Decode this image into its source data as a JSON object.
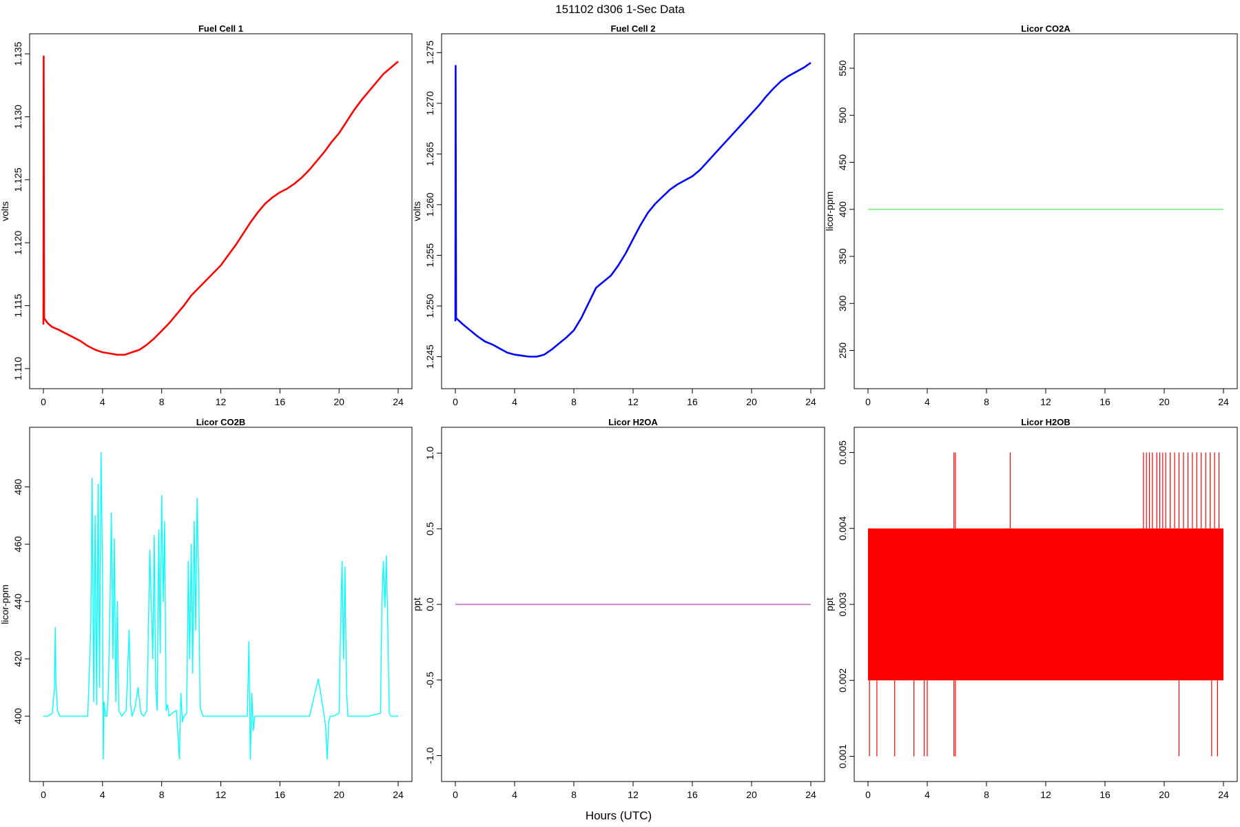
{
  "page": {
    "title": "151102   d306   1-Sec Data",
    "shared_xlabel": "Hours (UTC)"
  },
  "chart_data": [
    {
      "id": "fc1",
      "type": "line",
      "title": "Fuel Cell 1",
      "ylabel": "volts",
      "xlabel": "",
      "xlim": [
        0,
        24
      ],
      "ylim": [
        1.1095,
        1.1355
      ],
      "xticks": [
        0,
        4,
        8,
        12,
        16,
        20,
        24
      ],
      "yticks": [
        1.11,
        1.115,
        1.12,
        1.125,
        1.13,
        1.135
      ],
      "ytick_labels": [
        "1.110",
        "1.115",
        "1.120",
        "1.125",
        "1.130",
        "1.135"
      ],
      "color": "#ff0000",
      "grid": false,
      "series": [
        {
          "x": [
            0,
            0.02,
            0.05,
            0.3,
            0.6,
            1,
            1.5,
            2,
            2.5,
            3,
            3.5,
            4,
            4.5,
            5,
            5.5,
            6,
            6.5,
            7,
            7.5,
            8,
            8.5,
            9,
            9.5,
            10,
            10.5,
            11,
            11.5,
            12,
            12.5,
            13,
            13.5,
            14,
            14.5,
            15,
            15.5,
            16,
            16.5,
            17,
            17.5,
            18,
            18.5,
            19,
            19.5,
            20,
            20.5,
            21,
            21.5,
            22,
            22.5,
            23,
            23.5,
            24
          ],
          "values": [
            1.1135,
            1.1348,
            1.114,
            1.1136,
            1.1133,
            1.1131,
            1.1128,
            1.1125,
            1.1122,
            1.1118,
            1.1115,
            1.1113,
            1.1112,
            1.1111,
            1.1111,
            1.1113,
            1.1115,
            1.1119,
            1.1124,
            1.113,
            1.1136,
            1.1143,
            1.115,
            1.1158,
            1.1164,
            1.117,
            1.1176,
            1.1182,
            1.119,
            1.1198,
            1.1207,
            1.1216,
            1.1224,
            1.1231,
            1.1236,
            1.124,
            1.1243,
            1.1247,
            1.1252,
            1.1258,
            1.1265,
            1.1272,
            1.128,
            1.1287,
            1.1296,
            1.1305,
            1.1313,
            1.132,
            1.1327,
            1.1334,
            1.1339,
            1.1344
          ]
        }
      ]
    },
    {
      "id": "fc2",
      "type": "line",
      "title": "Fuel Cell 2",
      "ylabel": "volts",
      "xlabel": "",
      "xlim": [
        0,
        24
      ],
      "ylim": [
        1.2432,
        1.2755
      ],
      "xticks": [
        0,
        4,
        8,
        12,
        16,
        20,
        24
      ],
      "yticks": [
        1.245,
        1.25,
        1.255,
        1.26,
        1.265,
        1.27,
        1.275
      ],
      "ytick_labels": [
        "1.245",
        "1.250",
        "1.255",
        "1.260",
        "1.265",
        "1.270",
        "1.275"
      ],
      "color": "#0000ff",
      "grid": false,
      "series": [
        {
          "x": [
            0,
            0.02,
            0.05,
            0.5,
            1,
            1.5,
            2,
            2.5,
            3,
            3.5,
            4,
            4.5,
            5,
            5.5,
            6,
            6.5,
            7,
            7.5,
            8,
            8.5,
            9,
            9.5,
            10,
            10.5,
            11,
            11.5,
            12,
            12.5,
            13,
            13.5,
            14,
            14.5,
            15,
            15.5,
            16,
            16.5,
            17,
            17.5,
            18,
            18.5,
            19,
            19.5,
            20,
            20.5,
            21,
            21.5,
            22,
            22.5,
            23,
            23.5,
            24
          ],
          "values": [
            1.2485,
            1.2737,
            1.2488,
            1.2482,
            1.2476,
            1.247,
            1.2465,
            1.2462,
            1.2458,
            1.2454,
            1.2452,
            1.2451,
            1.245,
            1.245,
            1.2452,
            1.2457,
            1.2463,
            1.2469,
            1.2476,
            1.2488,
            1.2503,
            1.2518,
            1.2524,
            1.253,
            1.254,
            1.2552,
            1.2566,
            1.258,
            1.2592,
            1.2601,
            1.2608,
            1.2615,
            1.262,
            1.2624,
            1.2628,
            1.2634,
            1.2642,
            1.265,
            1.2658,
            1.2666,
            1.2674,
            1.2682,
            1.269,
            1.2698,
            1.2707,
            1.2715,
            1.2722,
            1.2727,
            1.2731,
            1.2735,
            1.274
          ]
        }
      ]
    },
    {
      "id": "co2a",
      "type": "line",
      "title": "Licor CO2A",
      "ylabel": "licor-ppm",
      "xlabel": "",
      "xlim": [
        0,
        24
      ],
      "ylim": [
        224,
        572
      ],
      "xticks": [
        0,
        4,
        8,
        12,
        16,
        20,
        24
      ],
      "yticks": [
        250,
        300,
        350,
        400,
        450,
        500,
        550
      ],
      "ytick_labels": [
        "250",
        "300",
        "350",
        "400",
        "450",
        "500",
        "550"
      ],
      "color": "#66ee66",
      "grid": false,
      "series": [
        {
          "x": [
            0,
            24
          ],
          "values": [
            400,
            400
          ]
        }
      ]
    },
    {
      "id": "co2b",
      "type": "line",
      "title": "Licor CO2B",
      "ylabel": "licor-ppm",
      "xlabel": "",
      "xlim": [
        0,
        24
      ],
      "ylim": [
        382,
        496
      ],
      "xticks": [
        0,
        4,
        8,
        12,
        16,
        20,
        24
      ],
      "yticks": [
        400,
        420,
        440,
        460,
        480
      ],
      "ytick_labels": [
        "400",
        "420",
        "440",
        "460",
        "480"
      ],
      "color": "#00ffff",
      "grid": false,
      "series": [
        {
          "x": [
            0,
            0.3,
            0.6,
            0.75,
            0.8,
            0.85,
            0.95,
            1.1,
            2,
            3.0,
            3.2,
            3.3,
            3.4,
            3.5,
            3.6,
            3.7,
            3.8,
            3.9,
            4.0,
            4.05,
            4.1,
            4.2,
            4.3,
            4.4,
            4.5,
            4.6,
            4.7,
            4.8,
            4.9,
            5.0,
            5.1,
            5.2,
            5.3,
            5.6,
            5.8,
            5.9,
            6.0,
            6.2,
            6.4,
            6.6,
            6.8,
            7.0,
            7.2,
            7.4,
            7.5,
            7.6,
            7.7,
            7.8,
            7.9,
            8.0,
            8.1,
            8.2,
            8.3,
            8.4,
            8.5,
            8.7,
            9.0,
            9.2,
            9.3,
            9.4,
            9.5,
            9.7,
            9.8,
            9.9,
            10.0,
            10.1,
            10.2,
            10.3,
            10.4,
            10.5,
            10.6,
            10.8,
            11.0,
            12,
            13,
            13.8,
            13.9,
            14.0,
            14.1,
            14.2,
            14.3,
            14.5,
            15,
            16,
            17,
            18,
            18.6,
            19.0,
            19.1,
            19.2,
            19.3,
            19.4,
            19.6,
            20.0,
            20.1,
            20.2,
            20.3,
            20.4,
            20.5,
            20.6,
            20.7,
            21,
            22,
            22.8,
            22.9,
            23.0,
            23.1,
            23.2,
            23.3,
            23.4,
            23.5,
            23.7,
            24
          ],
          "values": [
            400,
            400,
            401,
            410,
            431,
            412,
            402,
            400,
            400,
            400,
            430,
            483,
            405,
            470,
            404,
            481,
            410,
            492,
            450,
            385,
            405,
            400,
            400,
            410,
            438,
            471,
            420,
            462,
            405,
            440,
            402,
            401,
            400,
            402,
            430,
            404,
            400,
            403,
            410,
            401,
            400,
            402,
            458,
            420,
            463,
            410,
            402,
            465,
            422,
            477,
            440,
            468,
            402,
            404,
            400,
            401,
            402,
            385,
            408,
            398,
            400,
            401,
            454,
            420,
            460,
            415,
            468,
            430,
            476,
            450,
            403,
            400,
            400,
            400,
            400,
            400,
            426,
            385,
            408,
            395,
            400,
            400,
            400,
            400,
            400,
            400,
            413,
            400,
            396,
            385,
            398,
            400,
            400,
            401,
            430,
            454,
            420,
            452,
            410,
            400,
            400,
            400,
            400,
            401,
            440,
            454,
            438,
            456,
            430,
            401,
            400,
            400,
            400
          ]
        }
      ]
    },
    {
      "id": "h2oa",
      "type": "line",
      "title": "Licor H2OA",
      "ylabel": "ppt",
      "xlabel": "",
      "xlim": [
        0,
        24
      ],
      "ylim": [
        -1.08,
        1.08
      ],
      "xticks": [
        0,
        4,
        8,
        12,
        16,
        20,
        24
      ],
      "yticks": [
        -1.0,
        -0.5,
        0.0,
        0.5,
        1.0
      ],
      "ytick_labels": [
        "-1.0",
        "-0.5",
        "0.0",
        "0.5",
        "1.0"
      ],
      "color": "#cc66cc",
      "grid": false,
      "series": [
        {
          "x": [
            0,
            24
          ],
          "values": [
            0,
            0
          ]
        }
      ]
    },
    {
      "id": "h2ob",
      "type": "line",
      "title": "Licor H2OB",
      "ylabel": "ppt",
      "xlabel": "",
      "xlim": [
        0,
        24
      ],
      "ylim": [
        0.00085,
        0.00515
      ],
      "xticks": [
        0,
        4,
        8,
        12,
        16,
        20,
        24
      ],
      "yticks": [
        0.001,
        0.002,
        0.003,
        0.004,
        0.005
      ],
      "ytick_labels": [
        "0.001",
        "0.002",
        "0.003",
        "0.004",
        "0.005"
      ],
      "color": "#ff0000",
      "grid": false,
      "band": {
        "x": [
          0,
          24
        ],
        "low": 0.002,
        "high": 0.004
      },
      "series": [
        {
          "name": "spikes_high",
          "x": [
            5.8,
            5.9,
            9.6,
            18.6,
            18.8,
            19.0,
            19.2,
            19.5,
            19.7,
            19.9,
            20.1,
            20.4,
            20.7,
            21.0,
            21.3,
            21.6,
            21.9,
            22.2,
            22.5,
            22.8,
            23.1,
            23.4,
            23.7
          ],
          "values": [
            0.005,
            0.005,
            0.005,
            0.005,
            0.005,
            0.005,
            0.005,
            0.005,
            0.005,
            0.005,
            0.005,
            0.005,
            0.005,
            0.005,
            0.005,
            0.005,
            0.005,
            0.005,
            0.005,
            0.005,
            0.005,
            0.005,
            0.005
          ]
        },
        {
          "name": "spikes_low",
          "x": [
            0.1,
            0.6,
            1.8,
            3.1,
            3.8,
            4.0,
            5.8,
            5.9,
            21.0,
            23.2,
            23.6
          ],
          "values": [
            0.001,
            0.001,
            0.001,
            0.001,
            0.001,
            0.001,
            0.001,
            0.001,
            0.001,
            0.001,
            0.001
          ]
        }
      ]
    }
  ]
}
